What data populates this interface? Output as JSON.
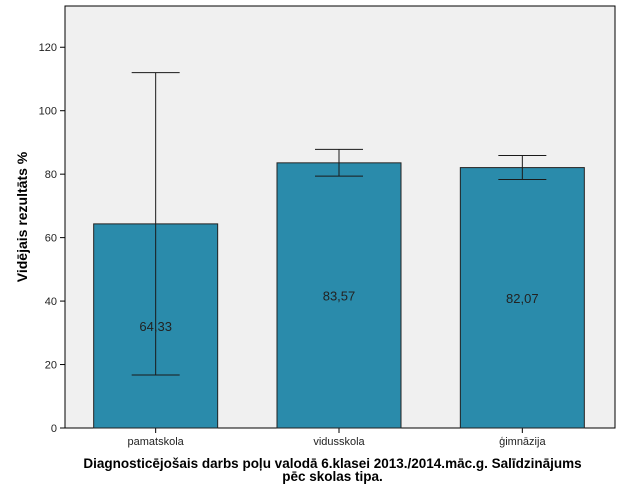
{
  "caption": {
    "line1": "Diagnosticējošais darbs poļu valodā 6.klasei 2013./2014.māc.g. Salīdzinājums",
    "line2": "pēc skolas tipa."
  },
  "chart_data": {
    "type": "bar",
    "ylabel": "Vidējais rezultāts %",
    "xlabel": "",
    "ylim": [
      0,
      133
    ],
    "yticks": [
      0,
      20,
      40,
      60,
      80,
      100,
      120
    ],
    "categories": [
      "pamatskola",
      "vidusskola",
      "ģimnāzija"
    ],
    "values": [
      64.33,
      83.57,
      82.07
    ],
    "value_labels": [
      "64,33",
      "83,57",
      "82,07"
    ],
    "error_bars": [
      {
        "low": 16.7,
        "high": 112.0
      },
      {
        "low": 79.4,
        "high": 87.8
      },
      {
        "low": 78.3,
        "high": 85.9
      }
    ],
    "grid": false,
    "legend": "none"
  },
  "colors": {
    "bar": "#2a8bab",
    "bar_stroke": "#222222",
    "plot_bg": "#f0f0f0",
    "axis": "#000000"
  }
}
